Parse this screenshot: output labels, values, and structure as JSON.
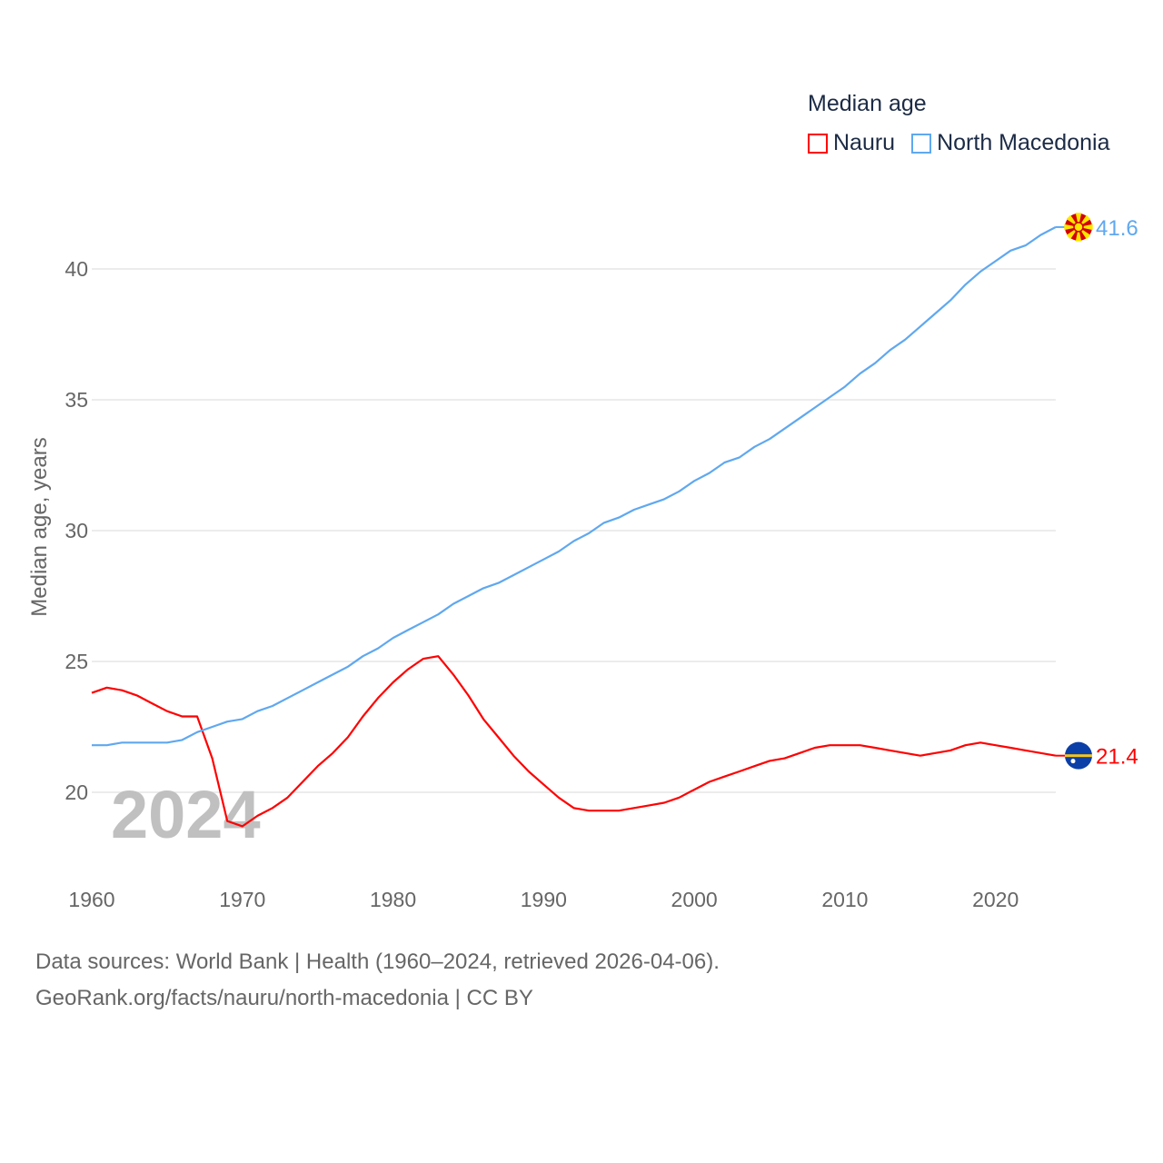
{
  "chart_data": {
    "type": "line",
    "legend_title": "Median age",
    "legend_placement": "top-right",
    "ylabel": "Median age, years",
    "xlabel": "",
    "xlim": [
      1960,
      2024
    ],
    "ylim": [
      17.5,
      42.5
    ],
    "xticks": [
      1960,
      1970,
      1980,
      1990,
      2000,
      2010,
      2020
    ],
    "xtick_labels": [
      "1960",
      "1970",
      "1980",
      "1990",
      "2000",
      "2010",
      "2020"
    ],
    "yticks": [
      20,
      25,
      30,
      35,
      40
    ],
    "ytick_labels": [
      "20",
      "25",
      "30",
      "35",
      "40"
    ],
    "grid": true,
    "year_watermark": "2024",
    "x": [
      1960,
      1961,
      1962,
      1963,
      1964,
      1965,
      1966,
      1967,
      1968,
      1969,
      1970,
      1971,
      1972,
      1973,
      1974,
      1975,
      1976,
      1977,
      1978,
      1979,
      1980,
      1981,
      1982,
      1983,
      1984,
      1985,
      1986,
      1987,
      1988,
      1989,
      1990,
      1991,
      1992,
      1993,
      1994,
      1995,
      1996,
      1997,
      1998,
      1999,
      2000,
      2001,
      2002,
      2003,
      2004,
      2005,
      2006,
      2007,
      2008,
      2009,
      2010,
      2011,
      2012,
      2013,
      2014,
      2015,
      2016,
      2017,
      2018,
      2019,
      2020,
      2021,
      2022,
      2023,
      2024
    ],
    "series": [
      {
        "name": "Nauru",
        "color": "#ff0000",
        "end_label": "21.4",
        "flag": "nauru-flag",
        "values": [
          23.8,
          24.0,
          23.9,
          23.7,
          23.4,
          23.1,
          22.9,
          22.9,
          21.3,
          18.9,
          18.7,
          19.1,
          19.4,
          19.8,
          20.4,
          21.0,
          21.5,
          22.1,
          22.9,
          23.6,
          24.2,
          24.7,
          25.1,
          25.2,
          24.5,
          23.7,
          22.8,
          22.1,
          21.4,
          20.8,
          20.3,
          19.8,
          19.4,
          19.3,
          19.3,
          19.3,
          19.4,
          19.5,
          19.6,
          19.8,
          20.1,
          20.4,
          20.6,
          20.8,
          21.0,
          21.2,
          21.3,
          21.5,
          21.7,
          21.8,
          21.8,
          21.8,
          21.7,
          21.6,
          21.5,
          21.4,
          21.5,
          21.6,
          21.8,
          21.9,
          21.8,
          21.7,
          21.6,
          21.5,
          21.4
        ]
      },
      {
        "name": "North Macedonia",
        "color": "#5fa8f0",
        "end_label": "41.6",
        "flag": "north-macedonia-flag",
        "values": [
          21.8,
          21.8,
          21.9,
          21.9,
          21.9,
          21.9,
          22.0,
          22.3,
          22.5,
          22.7,
          22.8,
          23.1,
          23.3,
          23.6,
          23.9,
          24.2,
          24.5,
          24.8,
          25.2,
          25.5,
          25.9,
          26.2,
          26.5,
          26.8,
          27.2,
          27.5,
          27.8,
          28.0,
          28.3,
          28.6,
          28.9,
          29.2,
          29.6,
          29.9,
          30.3,
          30.5,
          30.8,
          31.0,
          31.2,
          31.5,
          31.9,
          32.2,
          32.6,
          32.8,
          33.2,
          33.5,
          33.9,
          34.3,
          34.7,
          35.1,
          35.5,
          36.0,
          36.4,
          36.9,
          37.3,
          37.8,
          38.3,
          38.8,
          39.4,
          39.9,
          40.3,
          40.7,
          40.9,
          41.3,
          41.6
        ]
      }
    ]
  },
  "footer": {
    "line1": "Data sources: World Bank | Health (1960–2024, retrieved 2026-04-06).",
    "line2": "GeoRank.org/facts/nauru/north-macedonia | CC BY"
  }
}
